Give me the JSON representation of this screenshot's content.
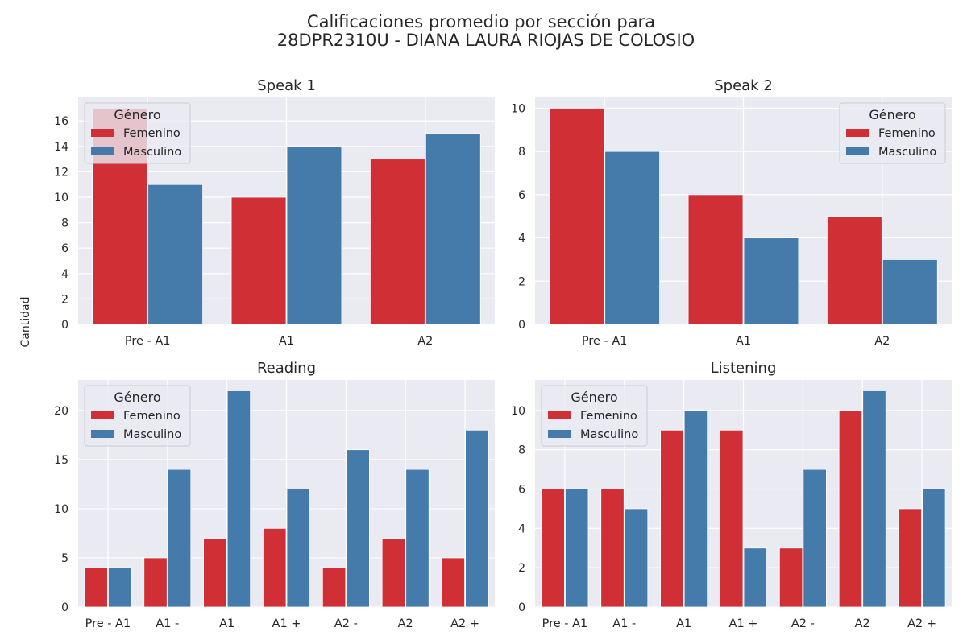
{
  "figure": {
    "title_line1": "Calificaciones promedio por sección para",
    "title_line2": "28DPR2310U - DIANA LAURA RIOJAS DE COLOSIO",
    "ylabel": "Cantidad"
  },
  "colors": {
    "Femenino": "#d03035",
    "Masculino": "#447bab",
    "background": "#eaeaf2",
    "grid": "#ffffff"
  },
  "chart_data": [
    {
      "type": "bar",
      "title": "Speak 1",
      "categories": [
        "Pre - A1",
        "A1",
        "A2"
      ],
      "series": [
        {
          "name": "Femenino",
          "values": [
            17,
            10,
            13
          ]
        },
        {
          "name": "Masculino",
          "values": [
            11,
            14,
            15
          ]
        }
      ],
      "ylim": [
        0,
        17.85
      ],
      "yticks": [
        0,
        2,
        4,
        6,
        8,
        10,
        12,
        14,
        16
      ],
      "legend": {
        "title": "Género",
        "placement": "upper-left"
      },
      "grid": true
    },
    {
      "type": "bar",
      "title": "Speak 2",
      "categories": [
        "Pre - A1",
        "A1",
        "A2"
      ],
      "series": [
        {
          "name": "Femenino",
          "values": [
            10,
            6,
            5
          ]
        },
        {
          "name": "Masculino",
          "values": [
            8,
            4,
            3
          ]
        }
      ],
      "ylim": [
        0,
        10.5
      ],
      "yticks": [
        0,
        2,
        4,
        6,
        8,
        10
      ],
      "legend": {
        "title": "Género",
        "placement": "upper-right"
      },
      "grid": true
    },
    {
      "type": "bar",
      "title": "Reading",
      "categories": [
        "Pre - A1",
        "A1 -",
        "A1",
        "A1 +",
        "A2 -",
        "A2",
        "A2 +"
      ],
      "series": [
        {
          "name": "Femenino",
          "values": [
            4,
            5,
            7,
            8,
            4,
            7,
            5
          ]
        },
        {
          "name": "Masculino",
          "values": [
            4,
            14,
            22,
            12,
            16,
            14,
            18
          ]
        }
      ],
      "ylim": [
        0,
        23.1
      ],
      "yticks": [
        0,
        5,
        10,
        15,
        20
      ],
      "legend": {
        "title": "Género",
        "placement": "upper-left"
      },
      "grid": true
    },
    {
      "type": "bar",
      "title": "Listening",
      "categories": [
        "Pre - A1",
        "A1 -",
        "A1",
        "A1 +",
        "A2 -",
        "A2",
        "A2 +"
      ],
      "series": [
        {
          "name": "Femenino",
          "values": [
            6,
            6,
            9,
            9,
            3,
            10,
            5
          ]
        },
        {
          "name": "Masculino",
          "values": [
            6,
            5,
            10,
            3,
            7,
            11,
            6
          ]
        }
      ],
      "ylim": [
        0,
        11.55
      ],
      "yticks": [
        0,
        2,
        4,
        6,
        8,
        10
      ],
      "legend": {
        "title": "Género",
        "placement": "upper-left"
      },
      "grid": true
    }
  ]
}
